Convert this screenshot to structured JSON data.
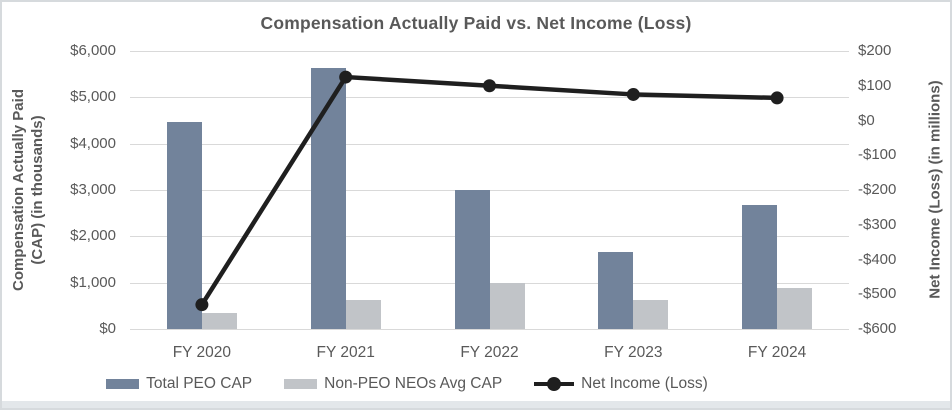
{
  "chart_data": {
    "type": "bar",
    "combo": "dual-axis bar and line",
    "title": "Compensation Actually Paid vs. Net Income (Loss)",
    "categories": [
      "FY 2020",
      "FY 2021",
      "FY 2022",
      "FY 2023",
      "FY 2024"
    ],
    "series": [
      {
        "name": "Total PEO CAP",
        "type": "bar",
        "axis": "left",
        "values": [
          4470,
          5640,
          3000,
          1660,
          2680
        ]
      },
      {
        "name": "Non-PEO NEOs Avg CAP",
        "type": "bar",
        "axis": "left",
        "values": [
          350,
          620,
          990,
          630,
          890
        ]
      },
      {
        "name": "Net Income (Loss)",
        "type": "line",
        "axis": "right",
        "values": [
          -530,
          125,
          100,
          75,
          65
        ]
      }
    ],
    "left_axis": {
      "label": "Compensation Actually Paid (CAP) (in thousands)",
      "min": 0,
      "max": 6000,
      "step": 1000,
      "ticks": [
        "$6,000",
        "$5,000",
        "$4,000",
        "$3,000",
        "$2,000",
        "$1,000",
        "$0"
      ]
    },
    "right_axis": {
      "label": "Net Income (Loss) (in millions)",
      "min": -600,
      "max": 200,
      "step": 100,
      "ticks": [
        "$200",
        "$100",
        "$0",
        "-$100",
        "-$200",
        "-$300",
        "-$400",
        "-$500",
        "-$600"
      ]
    },
    "grid": true,
    "legend_position": "bottom"
  },
  "colors": {
    "peo_bar": "#72839B",
    "non_peo_bar": "#C1C4C8",
    "line": "#1F1F1F",
    "grid": "#D9D9D9",
    "text": "#595959",
    "frame_border": "#D6DADD",
    "bottom_strip": "#E3E7EA"
  }
}
